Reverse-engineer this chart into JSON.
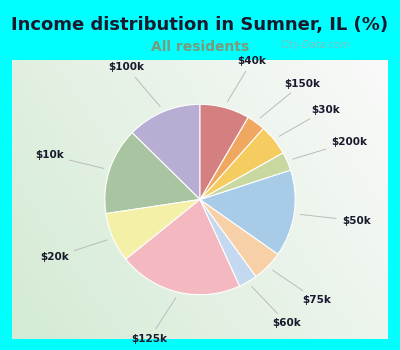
{
  "title": "Income distribution in Sumner, IL (%)",
  "subtitle": "All residents",
  "title_color": "#1a1a2e",
  "subtitle_color": "#7a9a7a",
  "bg_cyan": "#00ffff",
  "bg_chart": "#e0f0e8",
  "watermark": "City-Data.com",
  "labels": [
    "$100k",
    "$10k",
    "$20k",
    "$125k",
    "$60k",
    "$75k",
    "$50k",
    "$200k",
    "$30k",
    "$150k",
    "$40k"
  ],
  "values": [
    12,
    14,
    8,
    20,
    3,
    5,
    14,
    3,
    5,
    3,
    8
  ],
  "colors": [
    "#b8aed4",
    "#a8c4a0",
    "#f4f0a8",
    "#f4b8c0",
    "#c4d8f0",
    "#f8d0a8",
    "#a8cce8",
    "#c8d8a0",
    "#f4cc60",
    "#f0a860",
    "#d48080"
  ],
  "startangle": 90,
  "title_fontsize": 13,
  "subtitle_fontsize": 10,
  "label_fontsize": 7.5
}
